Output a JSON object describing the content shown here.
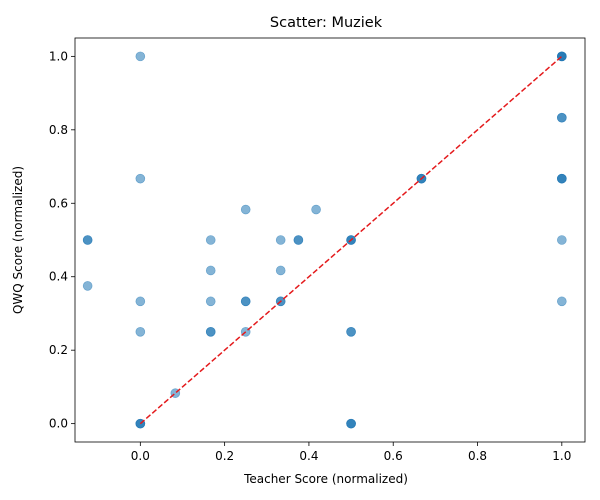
{
  "chart_data": {
    "type": "scatter",
    "title": "Scatter: Muziek",
    "xlabel": "Teacher Score (normalized)",
    "ylabel": "QWQ Score (normalized)",
    "xlim": [
      -0.155,
      1.055
    ],
    "ylim": [
      -0.05,
      1.05
    ],
    "xticks": [
      0.0,
      0.2,
      0.4,
      0.6,
      0.8,
      1.0
    ],
    "yticks": [
      0.0,
      0.2,
      0.4,
      0.6,
      0.8,
      1.0
    ],
    "xtick_labels": [
      "0.0",
      "0.2",
      "0.4",
      "0.6",
      "0.8",
      "1.0"
    ],
    "ytick_labels": [
      "0.0",
      "0.2",
      "0.4",
      "0.6",
      "0.8",
      "1.0"
    ],
    "grid": false,
    "point_color": "#1f77b4",
    "point_alpha": 0.55,
    "reference_line": {
      "from": [
        0,
        0
      ],
      "to": [
        1,
        1
      ],
      "color": "#e41a1c",
      "style": "dashed"
    },
    "series": [
      {
        "points": [
          {
            "x": 0.0,
            "y": 1.0
          },
          {
            "x": 0.0,
            "y": 0.667
          },
          {
            "x": 0.0,
            "y": 0.333
          },
          {
            "x": 0.0,
            "y": 0.25
          },
          {
            "x": 0.0,
            "y": 0.0
          },
          {
            "x": 0.0,
            "y": 0.0
          },
          {
            "x": 0.0,
            "y": 0.0
          },
          {
            "x": -0.125,
            "y": 0.5
          },
          {
            "x": -0.125,
            "y": 0.5
          },
          {
            "x": -0.125,
            "y": 0.375
          },
          {
            "x": 0.083,
            "y": 0.083
          },
          {
            "x": 0.167,
            "y": 0.5
          },
          {
            "x": 0.167,
            "y": 0.417
          },
          {
            "x": 0.167,
            "y": 0.333
          },
          {
            "x": 0.167,
            "y": 0.25
          },
          {
            "x": 0.167,
            "y": 0.25
          },
          {
            "x": 0.25,
            "y": 0.583
          },
          {
            "x": 0.25,
            "y": 0.333
          },
          {
            "x": 0.25,
            "y": 0.333
          },
          {
            "x": 0.25,
            "y": 0.25
          },
          {
            "x": 0.333,
            "y": 0.5
          },
          {
            "x": 0.333,
            "y": 0.417
          },
          {
            "x": 0.333,
            "y": 0.333
          },
          {
            "x": 0.333,
            "y": 0.333
          },
          {
            "x": 0.375,
            "y": 0.5
          },
          {
            "x": 0.375,
            "y": 0.5
          },
          {
            "x": 0.417,
            "y": 0.583
          },
          {
            "x": 0.5,
            "y": 0.5
          },
          {
            "x": 0.5,
            "y": 0.5
          },
          {
            "x": 0.5,
            "y": 0.5
          },
          {
            "x": 0.5,
            "y": 0.25
          },
          {
            "x": 0.5,
            "y": 0.25
          },
          {
            "x": 0.5,
            "y": 0.0
          },
          {
            "x": 0.5,
            "y": 0.0
          },
          {
            "x": 0.5,
            "y": 0.0
          },
          {
            "x": 0.667,
            "y": 0.667
          },
          {
            "x": 0.667,
            "y": 0.667
          },
          {
            "x": 0.667,
            "y": 0.667
          },
          {
            "x": 1.0,
            "y": 1.0
          },
          {
            "x": 1.0,
            "y": 1.0
          },
          {
            "x": 1.0,
            "y": 1.0
          },
          {
            "x": 1.0,
            "y": 1.0
          },
          {
            "x": 1.0,
            "y": 0.833
          },
          {
            "x": 1.0,
            "y": 0.833
          },
          {
            "x": 1.0,
            "y": 0.667
          },
          {
            "x": 1.0,
            "y": 0.667
          },
          {
            "x": 1.0,
            "y": 0.667
          },
          {
            "x": 1.0,
            "y": 0.5
          },
          {
            "x": 1.0,
            "y": 0.333
          }
        ]
      }
    ]
  }
}
